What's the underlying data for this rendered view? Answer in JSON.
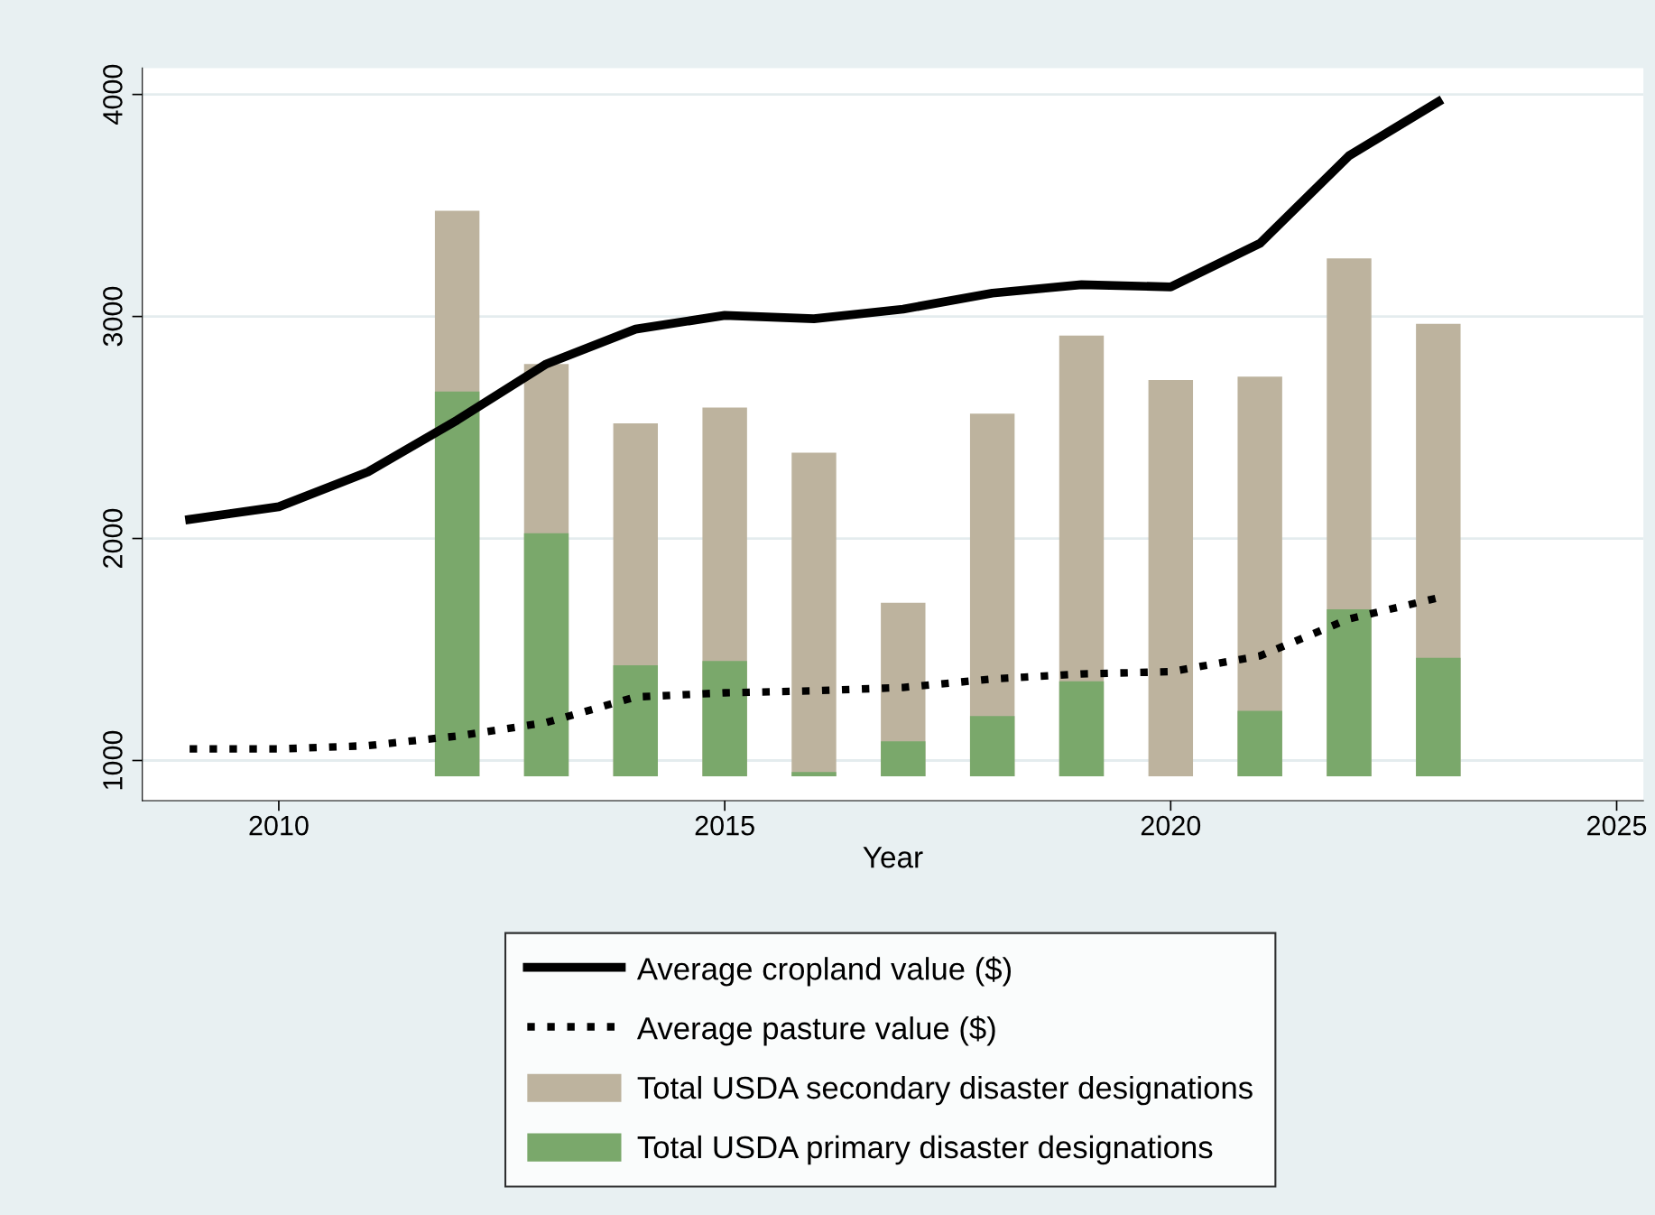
{
  "chart_data": {
    "type": "bar",
    "xlabel": "Year",
    "x": [
      2009,
      2010,
      2011,
      2012,
      2013,
      2014,
      2015,
      2016,
      2017,
      2018,
      2019,
      2020,
      2021,
      2022,
      2023
    ],
    "series": [
      {
        "name": "Average cropland value ($)",
        "type": "line",
        "line_style": "solid",
        "color": "#000000",
        "values": [
          2086,
          2143,
          2300,
          2533,
          2786,
          2943,
          3005,
          2990,
          3033,
          3105,
          3143,
          3133,
          3329,
          3724,
          3967
        ]
      },
      {
        "name": "Average pasture value ($)",
        "type": "line",
        "line_style": "dotted",
        "color": "#000000",
        "values": [
          1052,
          1052,
          1067,
          1110,
          1171,
          1286,
          1305,
          1314,
          1329,
          1367,
          1390,
          1400,
          1471,
          1638,
          1733
        ]
      },
      {
        "name": "Total USDA secondary disaster designations",
        "color": "#bdb39e",
        "base": [
          null,
          null,
          null,
          929,
          929,
          929,
          929,
          929,
          929,
          929,
          929,
          929,
          929,
          929,
          929
        ],
        "values": [
          null,
          null,
          null,
          2547,
          1857,
          1590,
          1661,
          1457,
          781,
          1633,
          1985,
          1785,
          1800,
          2333,
          2038
        ]
      },
      {
        "name": "Total USDA primary disaster designations",
        "color": "#7aa86b",
        "base": [
          null,
          null,
          null,
          929,
          929,
          929,
          929,
          929,
          929,
          929,
          929,
          null,
          929,
          929,
          929
        ],
        "values": [
          null,
          null,
          null,
          1733,
          1095,
          500,
          519,
          19,
          157,
          271,
          428,
          null,
          295,
          752,
          533
        ]
      }
    ],
    "xlim": [
      2008.47,
      2025.3
    ],
    "xticks": [
      2010,
      2015,
      2020,
      2025
    ],
    "ylim": [
      819,
      4119
    ],
    "yticks": [
      1000,
      2000,
      3000,
      4000
    ],
    "grid": "y",
    "legend": "bottom"
  }
}
